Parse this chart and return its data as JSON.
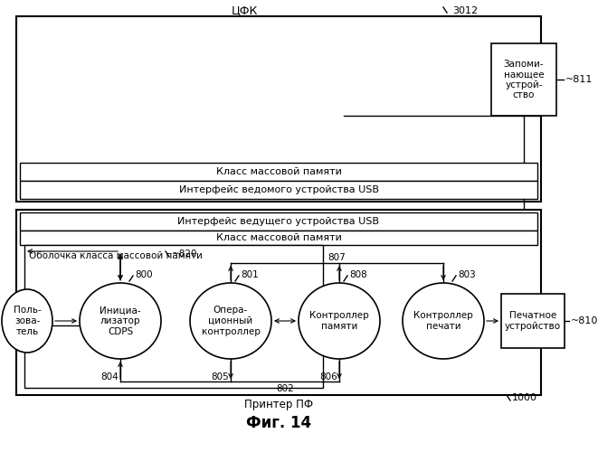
{
  "title": "ЦФК",
  "label_3012": "3012",
  "label_811": "~811",
  "label_1000": "1000",
  "label_820": "~820",
  "label_800": "800",
  "label_801": "801",
  "label_807": "807",
  "label_808": "808",
  "label_803": "803",
  "label_802": "802",
  "label_804": "804",
  "label_805": "805",
  "label_806": "806",
  "label_810": "~810",
  "text_mass_mem": "Класс массовой памяти",
  "text_slave_usb": "Интерфейс ведомого устройства USB",
  "text_master_usb": "Интерфейс ведущего устройства USB",
  "text_mass_mem2": "Класс массовой памяти",
  "text_shell": "Оболочка класса массовой памяти",
  "text_user": "Поль-\nзова-\nтель",
  "text_init": "Инициа-\nлизатор\nCDPS",
  "text_op": "Опера-\nционный\nконтроллер",
  "text_mem_ctrl": "Контроллер\nпамяти",
  "text_print_ctrl": "Контроллер\nпечати",
  "text_storage": "Запоми-\nнающее\nустрой-\nство",
  "text_print_dev": "Печатное\nустройство",
  "text_printer": "Принтер ПФ",
  "text_fig": "Фиг. 14",
  "bg_color": "#ffffff",
  "box_color": "#000000"
}
